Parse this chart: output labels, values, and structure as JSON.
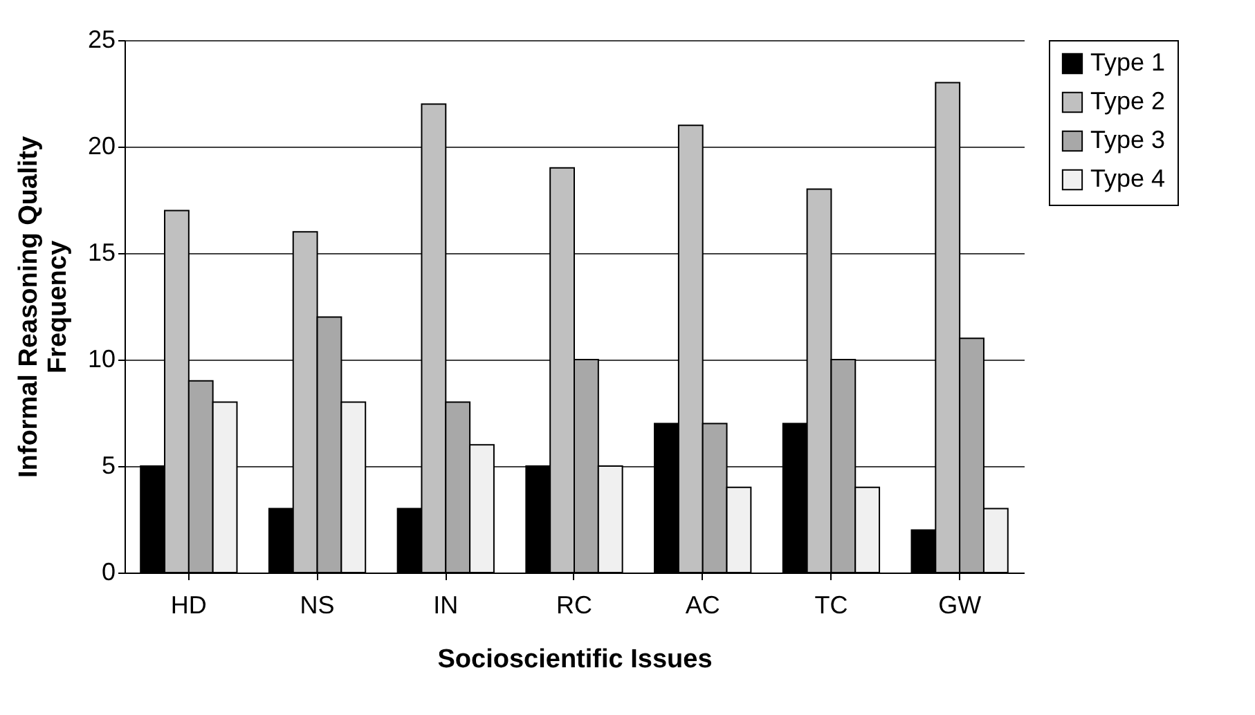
{
  "chart_data": {
    "type": "bar",
    "xlabel": "Socioscientific Issues",
    "ylabel": "Informal Reasoning Quality\nFrequency",
    "categories": [
      "HD",
      "NS",
      "IN",
      "RC",
      "AC",
      "TC",
      "GW"
    ],
    "series": [
      {
        "name": "Type 1",
        "color": "#000000",
        "values": [
          5,
          3,
          3,
          5,
          7,
          7,
          2
        ]
      },
      {
        "name": "Type 2",
        "color": "#c0c0c0",
        "values": [
          17,
          16,
          22,
          19,
          21,
          18,
          23
        ]
      },
      {
        "name": "Type 3",
        "color": "#a8a8a8",
        "values": [
          9,
          12,
          8,
          10,
          7,
          10,
          11
        ]
      },
      {
        "name": "Type 4",
        "color": "#f0f0f0",
        "values": [
          8,
          8,
          6,
          5,
          4,
          4,
          3
        ]
      }
    ],
    "ylim": [
      0,
      25
    ],
    "yticks": [
      0,
      5,
      10,
      15,
      20,
      25
    ],
    "grid": "y",
    "legend": "right"
  }
}
